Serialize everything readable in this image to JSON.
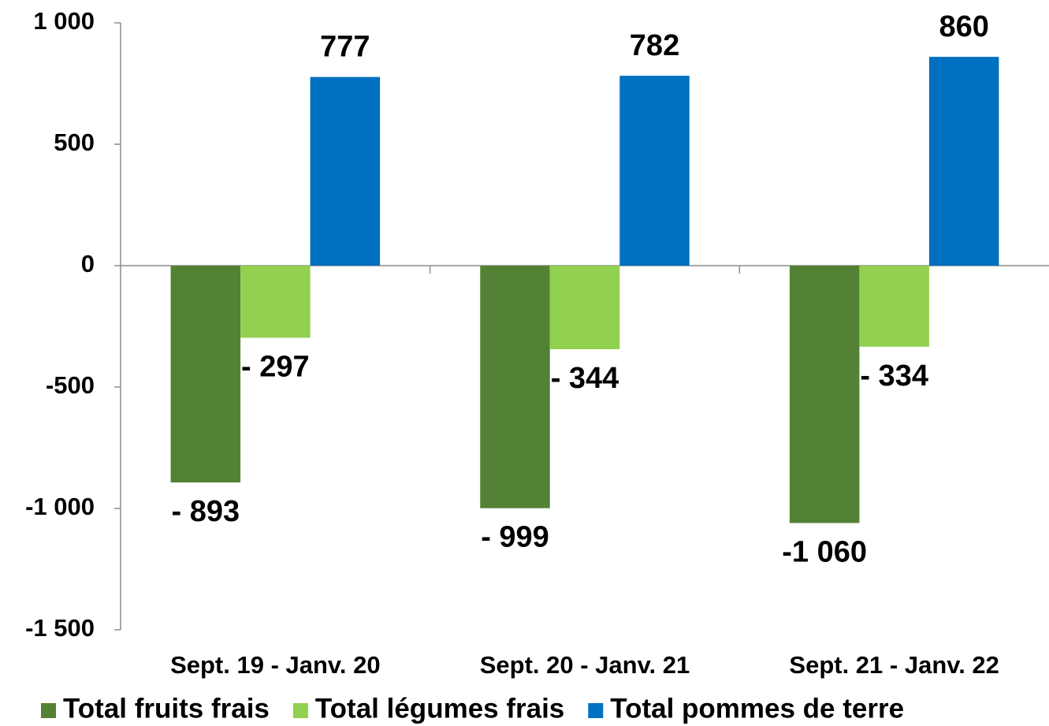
{
  "chart_data": {
    "type": "bar",
    "categories": [
      "Sept. 19 - Janv. 20",
      "Sept. 20 - Janv. 21",
      "Sept. 21 - Janv. 22"
    ],
    "series": [
      {
        "name": "Total fruits frais",
        "color": "#548235",
        "values": [
          -893,
          -999,
          -1060
        ],
        "value_labels": [
          "- 893",
          "- 999",
          "-1 060"
        ]
      },
      {
        "name": "Total légumes frais",
        "color": "#92d050",
        "values": [
          -297,
          -344,
          -334
        ],
        "value_labels": [
          "- 297",
          "- 344",
          "- 334"
        ]
      },
      {
        "name": "Total pommes de terre",
        "color": "#0070c0",
        "values": [
          777,
          782,
          860
        ]
      }
    ],
    "ylim": [
      -1500,
      1000
    ],
    "yticks": [
      {
        "value": -1500,
        "label": "-1 500"
      },
      {
        "value": -1000,
        "label": "-1 000"
      },
      -500,
      0,
      500,
      {
        "value": 1000,
        "label": "1 000"
      }
    ],
    "legend": "bottom"
  }
}
